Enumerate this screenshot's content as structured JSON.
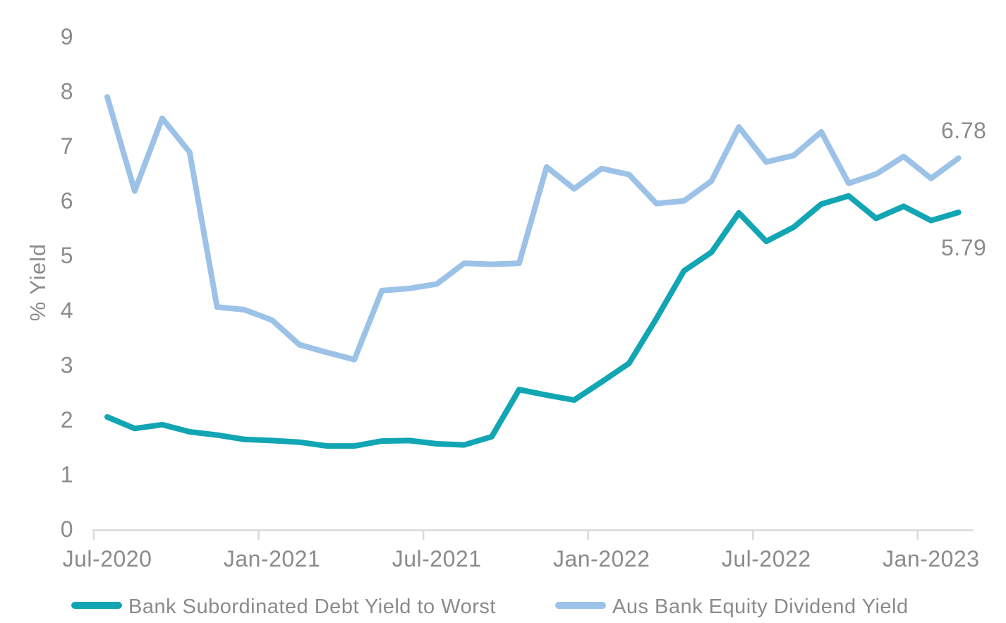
{
  "chart_data": {
    "type": "line",
    "title": "",
    "xlabel": "",
    "ylabel": "% Yield",
    "ylim": [
      0,
      9
    ],
    "yticks": [
      0,
      1,
      2,
      3,
      4,
      5,
      6,
      7,
      8,
      9
    ],
    "grid": false,
    "legend_position": "bottom",
    "axis_color": "#DADADA",
    "label_color": "#8B8B8B",
    "categories": [
      "Jul-2020",
      "Aug-2020",
      "Sep-2020",
      "Oct-2020",
      "Nov-2020",
      "Dec-2020",
      "Jan-2021",
      "Feb-2021",
      "Mar-2021",
      "Apr-2021",
      "May-2021",
      "Jun-2021",
      "Jul-2021",
      "Aug-2021",
      "Sep-2021",
      "Oct-2021",
      "Nov-2021",
      "Dec-2021",
      "Jan-2022",
      "Feb-2022",
      "Mar-2022",
      "Apr-2022",
      "May-2022",
      "Jun-2022",
      "Jul-2022",
      "Aug-2022",
      "Sep-2022",
      "Oct-2022",
      "Nov-2022",
      "Dec-2022",
      "Jan-2023",
      "Feb-2023"
    ],
    "x_tick_labels": [
      "Jul-2020",
      "Jan-2021",
      "Jul-2021",
      "Jan-2022",
      "Jul-2022",
      "Jan-2023"
    ],
    "x_tick_indices": [
      0,
      6,
      12,
      18,
      24,
      30
    ],
    "series": [
      {
        "name": "Bank Subordinated Debt Yield to Worst",
        "color": "#12A6B4",
        "end_label": "5.79",
        "values": [
          2.05,
          1.84,
          1.91,
          1.78,
          1.72,
          1.64,
          1.62,
          1.59,
          1.52,
          1.52,
          1.61,
          1.62,
          1.56,
          1.54,
          1.69,
          2.55,
          2.45,
          2.36,
          2.69,
          3.03,
          3.85,
          4.72,
          5.06,
          5.78,
          5.26,
          5.52,
          5.94,
          6.09,
          5.68,
          5.9,
          5.64,
          5.79
        ]
      },
      {
        "name": "Aus Bank Equity Dividend Yield",
        "color": "#9CC2E8",
        "end_label": "6.78",
        "values": [
          7.9,
          6.18,
          7.51,
          6.89,
          4.06,
          4.01,
          3.82,
          3.37,
          3.23,
          3.1,
          4.36,
          4.4,
          4.48,
          4.86,
          4.84,
          4.86,
          6.62,
          6.22,
          6.59,
          6.48,
          5.95,
          6.0,
          6.36,
          7.35,
          6.71,
          6.83,
          7.26,
          6.32,
          6.49,
          6.81,
          6.41,
          6.78
        ]
      }
    ]
  }
}
